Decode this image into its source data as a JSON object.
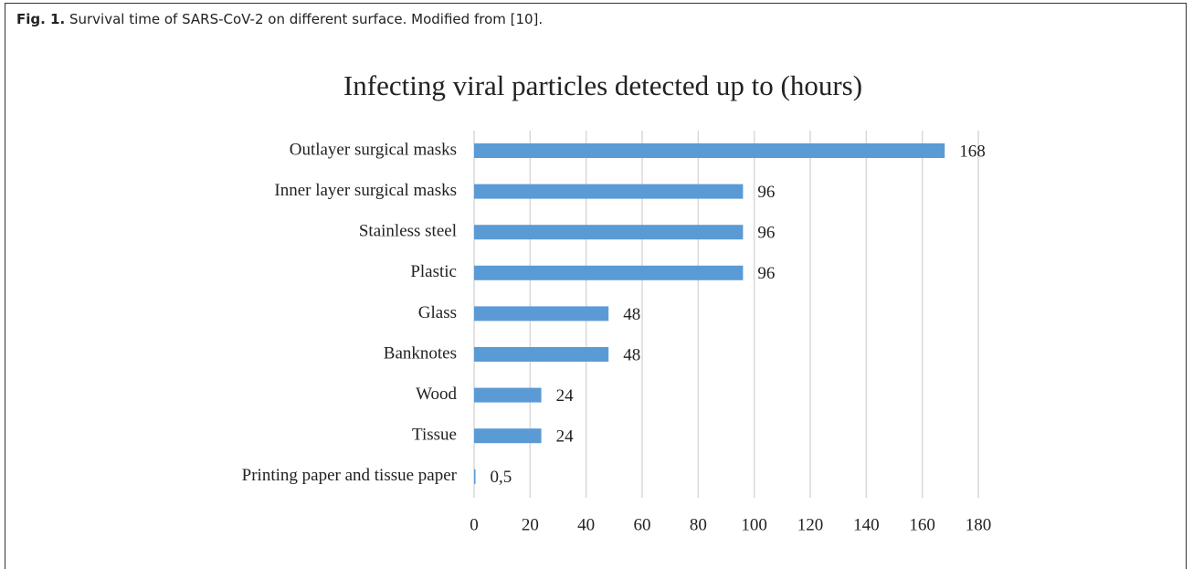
{
  "caption": {
    "label": "Fig. 1.",
    "text": "Survival time of SARS-CoV-2 on different surface. Modified from [10]."
  },
  "chart_data": {
    "type": "barh",
    "title": "Infecting viral particles detected up to (hours)",
    "categories": [
      "Outlayer surgical masks",
      "Inner layer surgical masks",
      "Stainless steel",
      "Plastic",
      "Glass",
      "Banknotes",
      "Wood",
      "Tissue",
      "Printing paper and tissue paper"
    ],
    "values": [
      168,
      96,
      96,
      96,
      48,
      48,
      24,
      24,
      0.5
    ],
    "value_labels": [
      "168",
      "96",
      "96",
      "96",
      "48",
      "48",
      "24",
      "24",
      "0,5"
    ],
    "color": "#5b9bd5",
    "xlim": [
      0,
      180
    ],
    "xticks": [
      0,
      20,
      40,
      60,
      80,
      100,
      120,
      140,
      160,
      180
    ],
    "grid": true
  }
}
